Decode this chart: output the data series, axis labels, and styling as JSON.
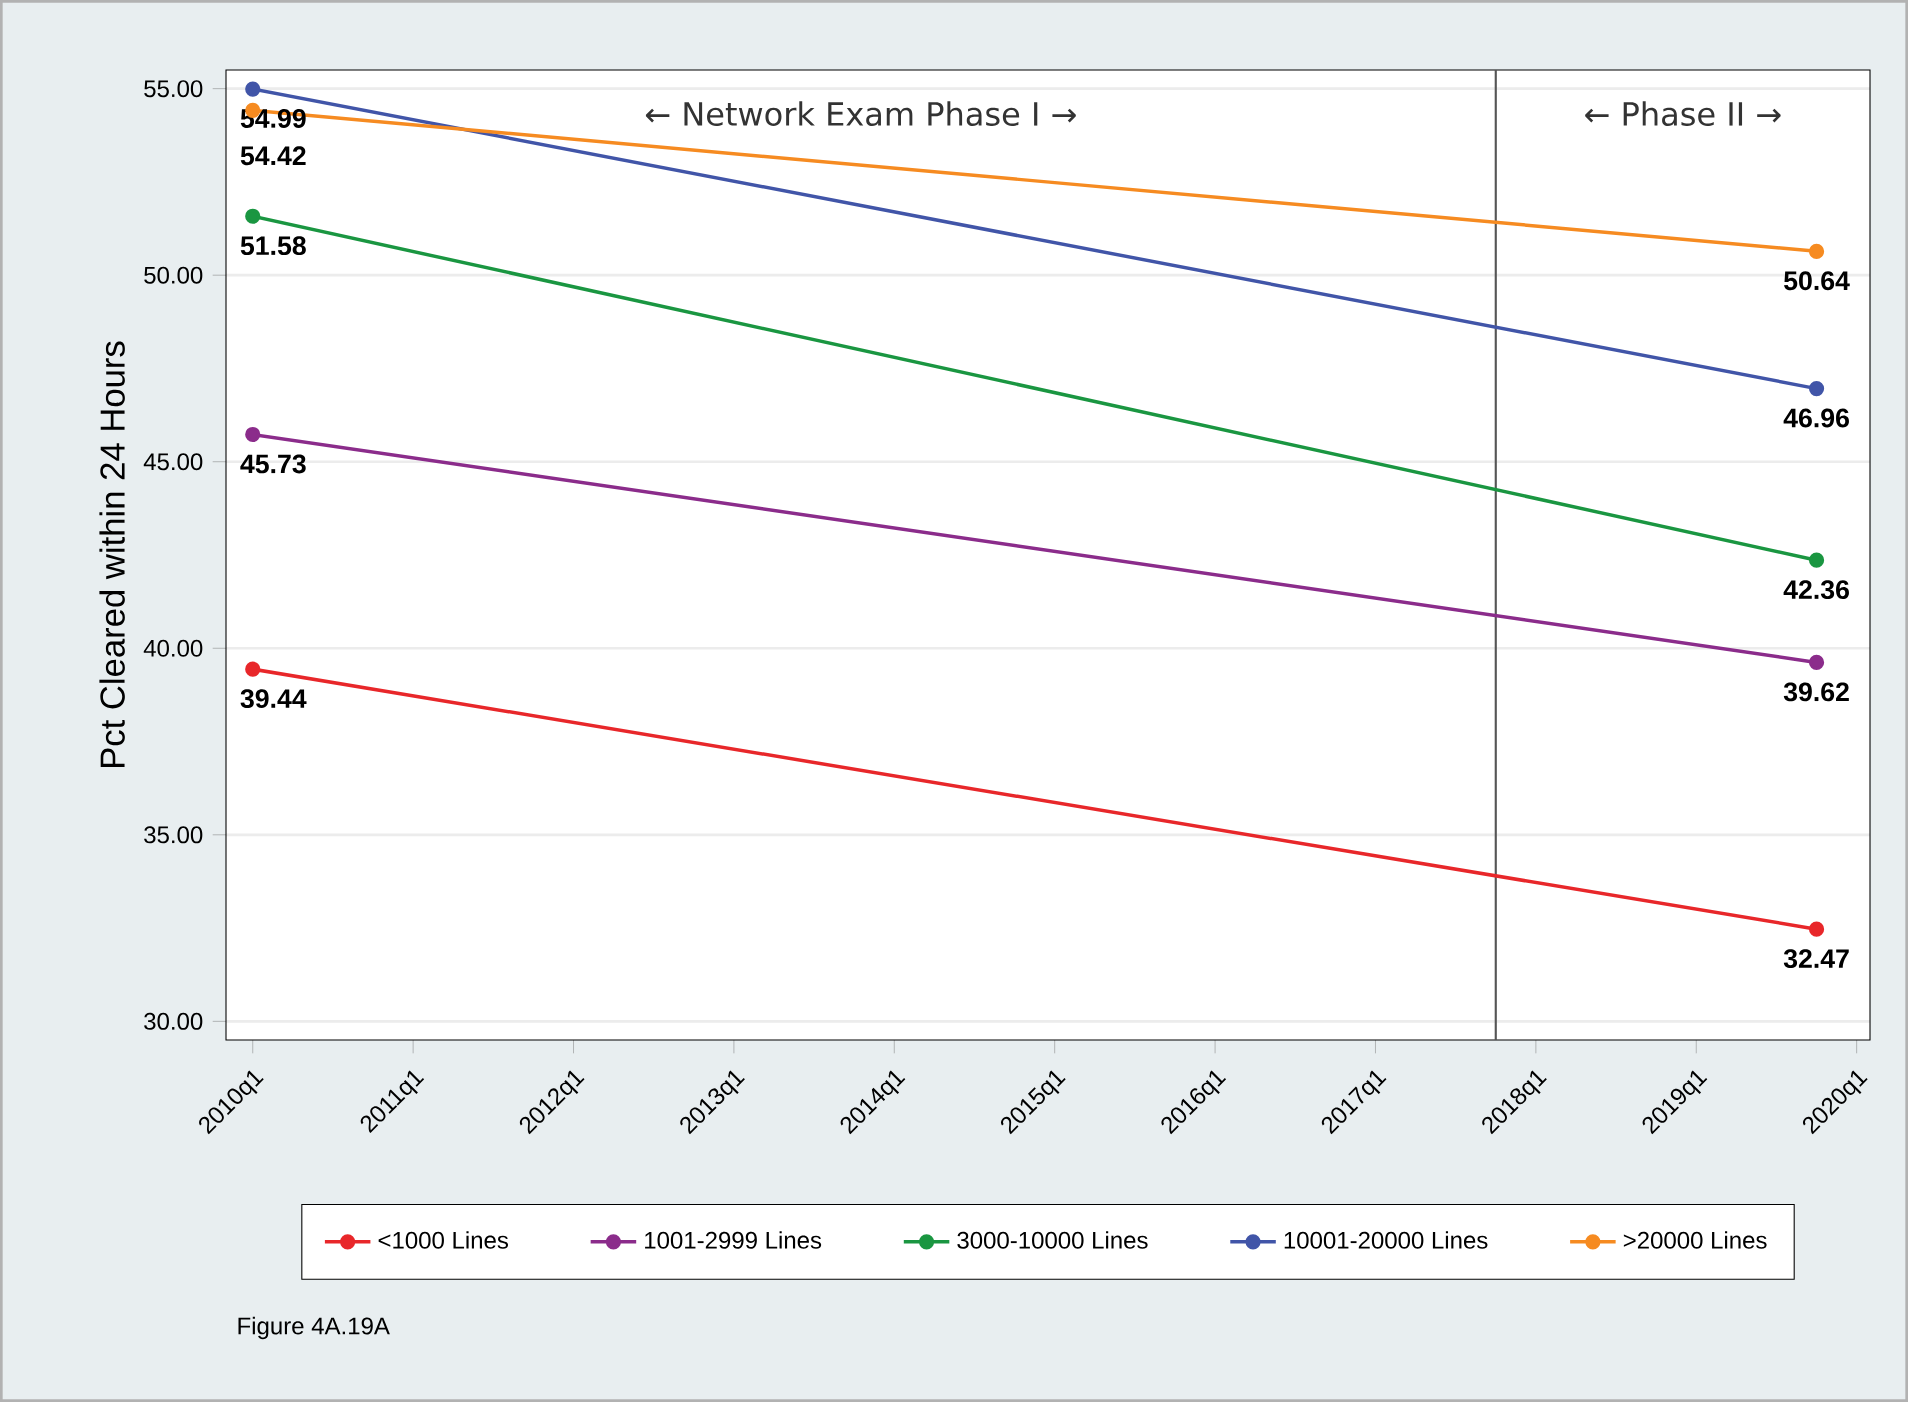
{
  "chart_data": {
    "type": "line",
    "ylabel": "Pct Cleared within 24 Hours",
    "x": [
      "2010-01",
      "2019-10"
    ],
    "series": [
      {
        "name": "<1000 Lines",
        "color": "#e8272a",
        "values": [
          39.44,
          32.47
        ]
      },
      {
        "name": "1001-2999 Lines",
        "color": "#8b2c8b",
        "values": [
          45.73,
          39.62
        ]
      },
      {
        "name": "3000-10000 Lines",
        "color": "#1a9641",
        "values": [
          51.58,
          42.36
        ]
      },
      {
        "name": "10001-20000 Lines",
        "color": "#4155a8",
        "values": [
          54.99,
          46.96
        ]
      },
      {
        "name": ">20000 Lines",
        "color": "#f68b21",
        "values": [
          54.42,
          50.64
        ]
      }
    ],
    "xlim": [
      "2009-11",
      "2020-02"
    ],
    "xticks": [
      {
        "value": "2010-01",
        "label": "2010q1"
      },
      {
        "value": "2011-01",
        "label": "2011q1"
      },
      {
        "value": "2012-01",
        "label": "2012q1"
      },
      {
        "value": "2013-01",
        "label": "2013q1"
      },
      {
        "value": "2014-01",
        "label": "2014q1"
      },
      {
        "value": "2015-01",
        "label": "2015q1"
      },
      {
        "value": "2016-01",
        "label": "2016q1"
      },
      {
        "value": "2017-01",
        "label": "2017q1"
      },
      {
        "value": "2018-01",
        "label": "2018q1"
      },
      {
        "value": "2019-01",
        "label": "2019q1"
      },
      {
        "value": "2020-01",
        "label": "2020q1"
      }
    ],
    "ylim": [
      29.5,
      55.5
    ],
    "yticks": [
      {
        "value": 30,
        "label": "30.00"
      },
      {
        "value": 35,
        "label": "35.00"
      },
      {
        "value": 40,
        "label": "40.00"
      },
      {
        "value": 45,
        "label": "45.00"
      },
      {
        "value": 50,
        "label": "50.00"
      },
      {
        "value": 55,
        "label": "55.00"
      }
    ],
    "ref_lines": [
      {
        "axis": "x",
        "value": "2017-10",
        "color": "#555555"
      }
    ],
    "annotations": [
      "← Network Exam Phase I →",
      "← Phase II →",
      "Figure 4A.19A"
    ],
    "data_labels": true,
    "grid": "y",
    "legend": "bottom",
    "marker": "circle",
    "line_style": "solid"
  }
}
